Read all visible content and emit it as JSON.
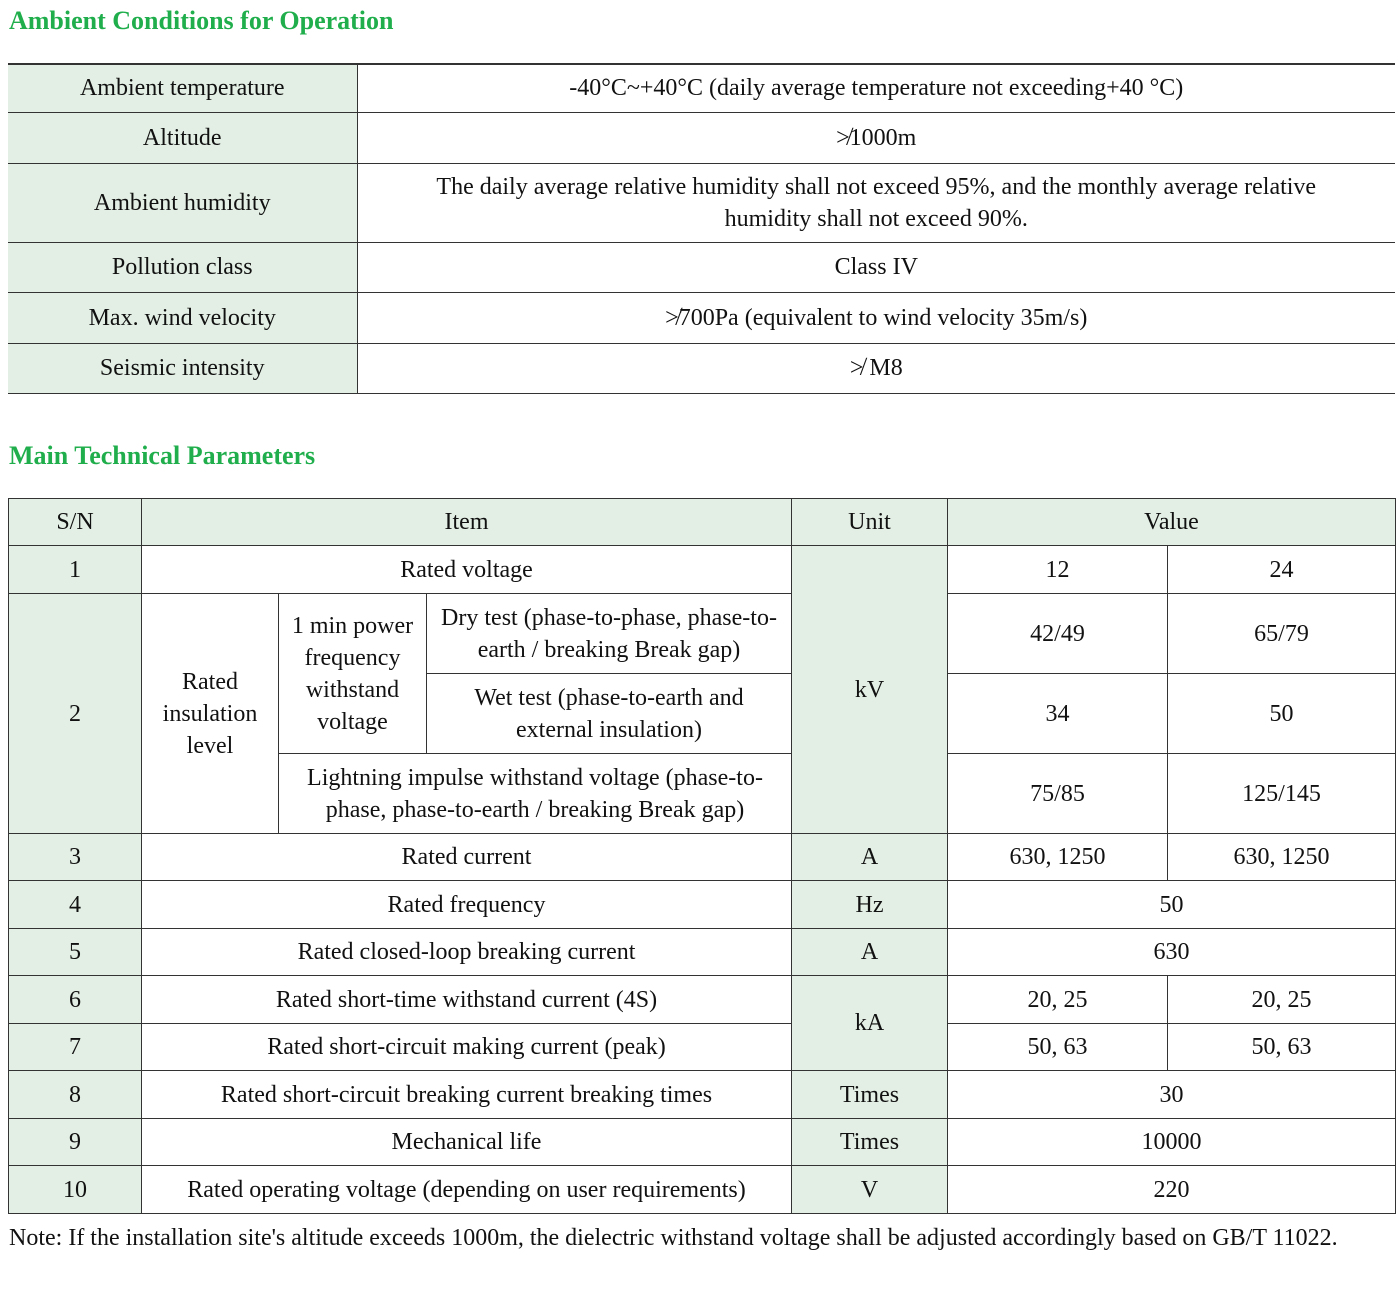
{
  "ambient": {
    "title": "Ambient Conditions for Operation",
    "rows": [
      [
        "Ambient temperature",
        "-40°C~+40°C (daily average temperature not exceeding+40 °C)"
      ],
      [
        "Altitude",
        "≯1000m"
      ],
      [
        "Ambient humidity",
        "The daily average relative humidity shall not exceed 95%, and the monthly average relative humidity shall not exceed 90%."
      ],
      [
        "Pollution class",
        "Class IV"
      ],
      [
        "Max. wind velocity",
        "≯700Pa (equivalent to wind velocity 35m/s)"
      ],
      [
        "Seismic intensity",
        "≯ M8"
      ]
    ]
  },
  "parameters": {
    "title": "Main Technical Parameters",
    "header": [
      "S/N",
      "Item",
      "Unit",
      "Value"
    ],
    "rows": [
      [
        "1",
        "Rated voltage",
        "kV",
        "12",
        "24"
      ],
      [
        "2",
        "Rated insulation level",
        "1 min power frequency withstand voltage",
        "Dry test (phase-to-phase, phase-to-earth / breaking Break gap)",
        "42/49",
        "65/79"
      ],
      [
        "Wet test (phase-to-earth and external insulation)",
        "34",
        "50"
      ],
      [
        "Lightning impulse withstand voltage (phase-to-phase, phase-to-earth / breaking Break gap)",
        "75/85",
        "125/145"
      ],
      [
        "3",
        "Rated current",
        "A",
        "630, 1250",
        "630, 1250"
      ],
      [
        "4",
        "Rated frequency",
        "Hz",
        "50"
      ],
      [
        "5",
        "Rated closed-loop breaking current",
        "A",
        "630"
      ],
      [
        "6",
        "Rated short-time withstand current (4S)",
        "kA",
        "20, 25",
        "20, 25"
      ],
      [
        "7",
        "Rated short-circuit making current (peak)",
        "50, 63",
        "50, 63"
      ],
      [
        "8",
        "Rated short-circuit breaking current breaking times",
        "Times",
        "30"
      ],
      [
        "9",
        "Mechanical life",
        "Times",
        "10000"
      ],
      [
        "10",
        "Rated operating voltage (depending on user requirements)",
        "V",
        "220"
      ]
    ]
  },
  "note": "Note: If the installation site's altitude exceeds 1000m, the dielectric withstand voltage shall be adjusted accordingly based on GB/T 11022."
}
